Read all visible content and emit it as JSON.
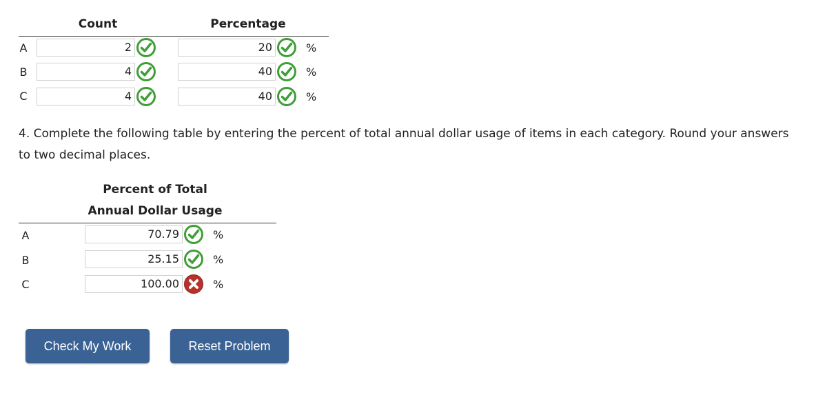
{
  "table1": {
    "headers": [
      "Count",
      "Percentage"
    ],
    "rows": [
      {
        "label": "A",
        "count": "2",
        "percentage": "20",
        "unit": "%"
      },
      {
        "label": "B",
        "count": "4",
        "percentage": "40",
        "unit": "%"
      },
      {
        "label": "C",
        "count": "4",
        "percentage": "40",
        "unit": "%"
      }
    ]
  },
  "question": "4. Complete the following table by entering the percent of total annual dollar usage of items in each category. Round your answers to two decimal places.",
  "table2": {
    "header_line1": "Percent of Total",
    "header_line2": "Annual Dollar Usage",
    "rows": [
      {
        "label": "A",
        "value": "70.79",
        "unit": "%"
      },
      {
        "label": "B",
        "value": "25.15",
        "unit": "%"
      },
      {
        "label": "C",
        "value": "100.00",
        "unit": "%"
      }
    ]
  },
  "buttons": [
    "Check My Work",
    "Reset Problem"
  ]
}
